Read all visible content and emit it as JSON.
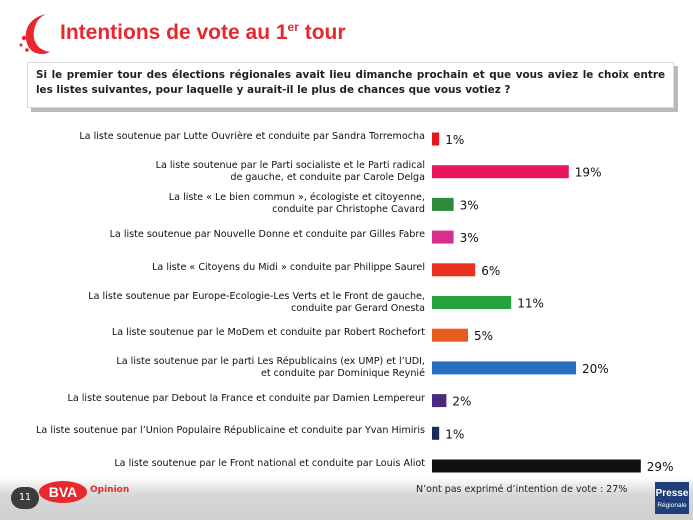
{
  "title": {
    "main": "Intentions de vote au 1",
    "sup": "er",
    "tail": " tour"
  },
  "question": "Si le premier tour des élections régionales avait lieu dimanche prochain et que vous aviez le choix entre les listes suivantes, pour laquelle y aurait-il le plus de chances que vous votiez ?",
  "chart_data": {
    "type": "bar",
    "orientation": "horizontal",
    "categories": [
      [
        "La liste soutenue par Lutte Ouvrière et conduite par Sandra Torremocha"
      ],
      [
        "La liste soutenue par le Parti socialiste et le Parti radical",
        "de gauche, et conduite par Carole Delga"
      ],
      [
        "La liste « Le bien commun », écologiste et citoyenne,",
        "conduite par Christophe Cavard"
      ],
      [
        "La liste soutenue par Nouvelle Donne et conduite par Gilles Fabre"
      ],
      [
        "La liste « Citoyens du Midi » conduite par Philippe Saurel"
      ],
      [
        "La liste soutenue par Europe-Ecologie-Les Verts et le Front de gauche,",
        "conduite par Gerard Onesta"
      ],
      [
        "La liste soutenue par le MoDem et conduite par Robert Rochefort"
      ],
      [
        "La liste soutenue par le parti Les Républicains (ex UMP) et l’UDI,",
        "et conduite par Dominique Reynié"
      ],
      [
        "La liste soutenue par Debout la France et conduite par Damien Lempereur"
      ],
      [
        "La liste soutenue par l’Union Populaire Républicaine et conduite par Yvan Himiris"
      ],
      [
        "La liste soutenue par le Front national et conduite par Louis Aliot"
      ]
    ],
    "values": [
      1,
      19,
      3,
      3,
      6,
      11,
      5,
      20,
      2,
      1,
      29
    ],
    "value_labels": [
      "1%",
      "19%",
      "3%",
      "3%",
      "6%",
      "11%",
      "5%",
      "20%",
      "2%",
      "1%",
      "29%"
    ],
    "colors": [
      "#e8141e",
      "#e8175d",
      "#2e8b3a",
      "#d62f8f",
      "#e8321e",
      "#26a33f",
      "#e85a1e",
      "#2a6fbf",
      "#4b2a7d",
      "#1d2a5c",
      "#111111"
    ],
    "xlim": [
      0,
      29
    ]
  },
  "footer": {
    "page_number": "11",
    "brand": "BVA",
    "brand_sub": "Opinion",
    "note": "N’ont pas exprimé d’intention de vote : 27%",
    "partner_line1": "Presse",
    "partner_line2": "Régionale"
  }
}
